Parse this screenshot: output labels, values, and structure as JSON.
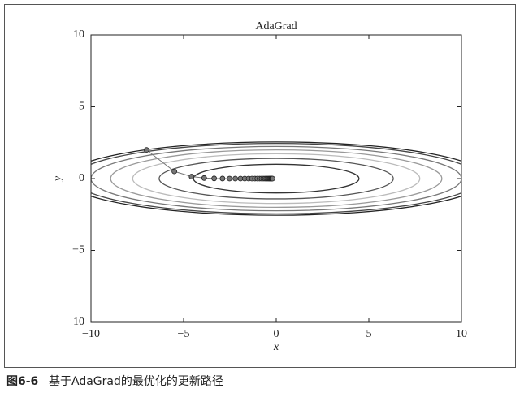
{
  "chart_data": {
    "type": "contour-path",
    "title": "AdaGrad",
    "x_label": "x",
    "y_label": "y",
    "xlim": [
      -10,
      10
    ],
    "ylim": [
      -10,
      10
    ],
    "xticks": [
      {
        "value": -10,
        "label": "−10"
      },
      {
        "value": -5,
        "label": "−5"
      },
      0,
      5,
      10
    ],
    "yticks": [
      {
        "value": -10,
        "label": "−10"
      },
      {
        "value": -5,
        "label": "−5"
      },
      0,
      5,
      10
    ],
    "contours": [
      {
        "x_radius": 4.47,
        "y_radius": 1.0,
        "color": "#333333"
      },
      {
        "x_radius": 6.32,
        "y_radius": 1.41,
        "color": "#555555"
      },
      {
        "x_radius": 7.75,
        "y_radius": 1.73,
        "color": "#bbbbbb"
      },
      {
        "x_radius": 8.94,
        "y_radius": 2.0,
        "color": "#999999"
      },
      {
        "x_radius": 10.0,
        "y_radius": 2.24,
        "color": "#777777"
      },
      {
        "x_radius": 10.95,
        "y_radius": 2.45,
        "color": "#444444"
      },
      {
        "x_radius": 11.4,
        "y_radius": 2.55,
        "color": "#222222"
      }
    ],
    "series": [
      {
        "color": "#777777",
        "x": [
          -7,
          -5.5,
          -4.57,
          -3.89,
          -3.35,
          -2.9,
          -2.52,
          -2.21,
          -1.93,
          -1.7,
          -1.49,
          -1.31,
          -1.15,
          -1.02,
          -0.9,
          -0.79,
          -0.7,
          -0.61,
          -0.54,
          -0.48,
          -0.42,
          -0.37,
          -0.33,
          -0.29,
          -0.26,
          -0.23,
          -0.2
        ],
        "values": [
          2,
          0.5,
          0.14,
          0.04,
          0.01,
          0.003,
          0.001,
          0,
          0,
          0,
          0,
          0,
          0,
          0,
          0,
          0,
          0,
          0,
          0,
          0,
          0,
          0,
          0,
          0,
          0,
          0,
          0
        ]
      }
    ]
  },
  "caption": {
    "number": "图6-6",
    "text": "基于AdaGrad的最优化的更新路径"
  }
}
